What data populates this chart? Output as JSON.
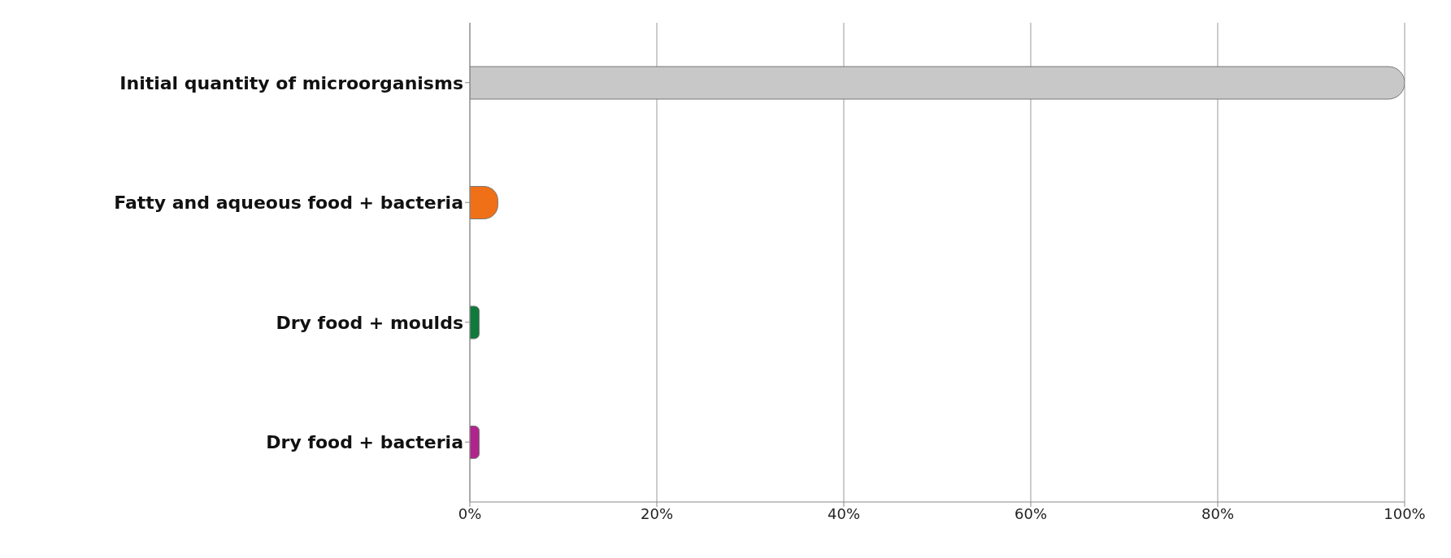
{
  "chart_data": {
    "type": "bar",
    "orientation": "horizontal",
    "categories": [
      "Initial quantity of microorganisms",
      "Fatty and aqueous food + bacteria",
      "Dry food + moulds",
      "Dry food + bacteria"
    ],
    "values": [
      100,
      3,
      1,
      1
    ],
    "colors": [
      "#c8c8c8",
      "#f07018",
      "#107a3c",
      "#b0248c"
    ],
    "xlim": [
      0,
      100
    ],
    "xticks": [
      {
        "value": 0,
        "label": "0%"
      },
      {
        "value": 20,
        "label": "20%"
      },
      {
        "value": 40,
        "label": "40%"
      },
      {
        "value": 60,
        "label": "60%"
      },
      {
        "value": 80,
        "label": "80%"
      },
      {
        "value": 100,
        "label": "100%"
      }
    ],
    "grid": "x",
    "legend": false
  }
}
